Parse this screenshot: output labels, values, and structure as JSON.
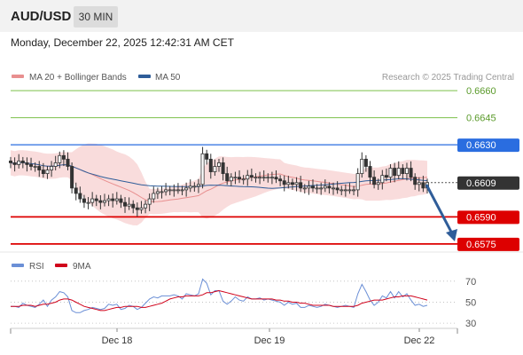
{
  "header": {
    "pair": "AUD/USD",
    "timeframe": "30 MIN",
    "timestamp": "Monday, December 22, 2025 12:42:31 AM CET"
  },
  "legend": {
    "ma20": "MA 20 + Bollinger Bands",
    "ma50": "MA 50",
    "credit": "Research © 2025 Trading Central"
  },
  "osc_legend": {
    "rsi": "RSI",
    "ma9": "9MA"
  },
  "colors": {
    "candle": "#333333",
    "band_fill": "#f7d0d0",
    "ma20": "#e88f8f",
    "ma50": "#2f5d99",
    "green_level": "#7cc04a",
    "blue_level": "#2a6de0",
    "red_level": "#dd0000",
    "arrow": "#2f5d99",
    "rsi": "#6b8fd6",
    "rsi_ma": "#d0021b"
  },
  "chart_data": [
    {
      "type": "candlestick",
      "x_labels": [
        "Dec 18",
        "Dec 19",
        "Dec 22"
      ],
      "ylim": [
        0.657,
        0.6665
      ],
      "levels": [
        {
          "value": 0.666,
          "label": "0.6660",
          "kind": "target"
        },
        {
          "value": 0.6645,
          "label": "0.6645",
          "kind": "target"
        },
        {
          "value": 0.663,
          "label": "0.6630",
          "kind": "pivot"
        },
        {
          "value": 0.659,
          "label": "0.6590",
          "kind": "support"
        },
        {
          "value": 0.6575,
          "label": "0.6575",
          "kind": "support"
        }
      ],
      "last_price": 0.6609,
      "last_label": "0.6609",
      "close": [
        0.662,
        0.6619,
        0.6621,
        0.662,
        0.6619,
        0.6618,
        0.6618,
        0.6616,
        0.6614,
        0.6616,
        0.6618,
        0.662,
        0.6624,
        0.6622,
        0.6618,
        0.6606,
        0.6603,
        0.66,
        0.6598,
        0.6598,
        0.66,
        0.6599,
        0.6598,
        0.6599,
        0.66,
        0.6599,
        0.66,
        0.6598,
        0.6596,
        0.6597,
        0.6595,
        0.6594,
        0.6595,
        0.6597,
        0.66,
        0.6603,
        0.6604,
        0.6604,
        0.6605,
        0.6605,
        0.6605,
        0.6605,
        0.6605,
        0.6606,
        0.6607,
        0.6607,
        0.6608,
        0.6625,
        0.6622,
        0.6615,
        0.6618,
        0.662,
        0.6614,
        0.661,
        0.6612,
        0.6612,
        0.6611,
        0.6611,
        0.6613,
        0.6612,
        0.6612,
        0.6612,
        0.6612,
        0.6612,
        0.6612,
        0.6611,
        0.661,
        0.6608,
        0.6609,
        0.6608,
        0.6609,
        0.6606,
        0.6606,
        0.6607,
        0.6606,
        0.6606,
        0.6606,
        0.6607,
        0.6606,
        0.6606,
        0.6605,
        0.6605,
        0.6605,
        0.6605,
        0.6605,
        0.6614,
        0.6622,
        0.6618,
        0.6612,
        0.6608,
        0.6609,
        0.6613,
        0.6612,
        0.6617,
        0.6613,
        0.6617,
        0.6614,
        0.6617,
        0.6612,
        0.6608,
        0.6609,
        0.6606,
        0.6609
      ]
    },
    {
      "type": "line",
      "title": "RSI",
      "ylim": [
        25,
        80
      ],
      "y_ticks": [
        30,
        50,
        70
      ],
      "series": [
        {
          "name": "RSI",
          "values": [
            46,
            46,
            45,
            49,
            47,
            46,
            45,
            48,
            52,
            46,
            52,
            55,
            60,
            59,
            55,
            42,
            40,
            40,
            42,
            43,
            45,
            44,
            43,
            44,
            48,
            47,
            48,
            43,
            44,
            47,
            46,
            43,
            45,
            49,
            53,
            55,
            54,
            56,
            56,
            56,
            57,
            56,
            53,
            58,
            57,
            56,
            58,
            72,
            68,
            57,
            61,
            61,
            51,
            48,
            51,
            55,
            52,
            51,
            55,
            53,
            53,
            54,
            52,
            53,
            52,
            51,
            50,
            47,
            50,
            48,
            49,
            45,
            45,
            47,
            46,
            45,
            46,
            48,
            47,
            46,
            45,
            46,
            47,
            46,
            45,
            58,
            67,
            60,
            52,
            47,
            50,
            56,
            54,
            60,
            54,
            60,
            55,
            58,
            52,
            47,
            48,
            46,
            47
          ]
        },
        {
          "name": "9MA",
          "values": [
            46,
            46,
            46,
            47,
            47,
            47,
            46,
            47,
            48,
            48,
            49,
            50,
            52,
            53,
            53,
            52,
            50,
            48,
            46,
            45,
            44,
            43,
            42,
            42,
            43,
            44,
            45,
            45,
            46,
            46,
            46,
            46,
            45,
            45,
            46,
            47,
            48,
            49,
            51,
            53,
            54,
            55,
            55,
            56,
            56,
            56,
            56,
            57,
            59,
            59,
            60,
            61,
            60,
            59,
            58,
            57,
            56,
            55,
            54,
            53,
            53,
            53,
            53,
            53,
            53,
            52,
            52,
            51,
            51,
            50,
            50,
            49,
            49,
            48,
            47,
            47,
            47,
            47,
            47,
            46,
            46,
            46,
            46,
            46,
            46,
            47,
            49,
            50,
            51,
            52,
            52,
            52,
            53,
            54,
            55,
            55,
            56,
            56,
            56,
            55,
            54,
            53,
            52
          ]
        }
      ]
    }
  ]
}
